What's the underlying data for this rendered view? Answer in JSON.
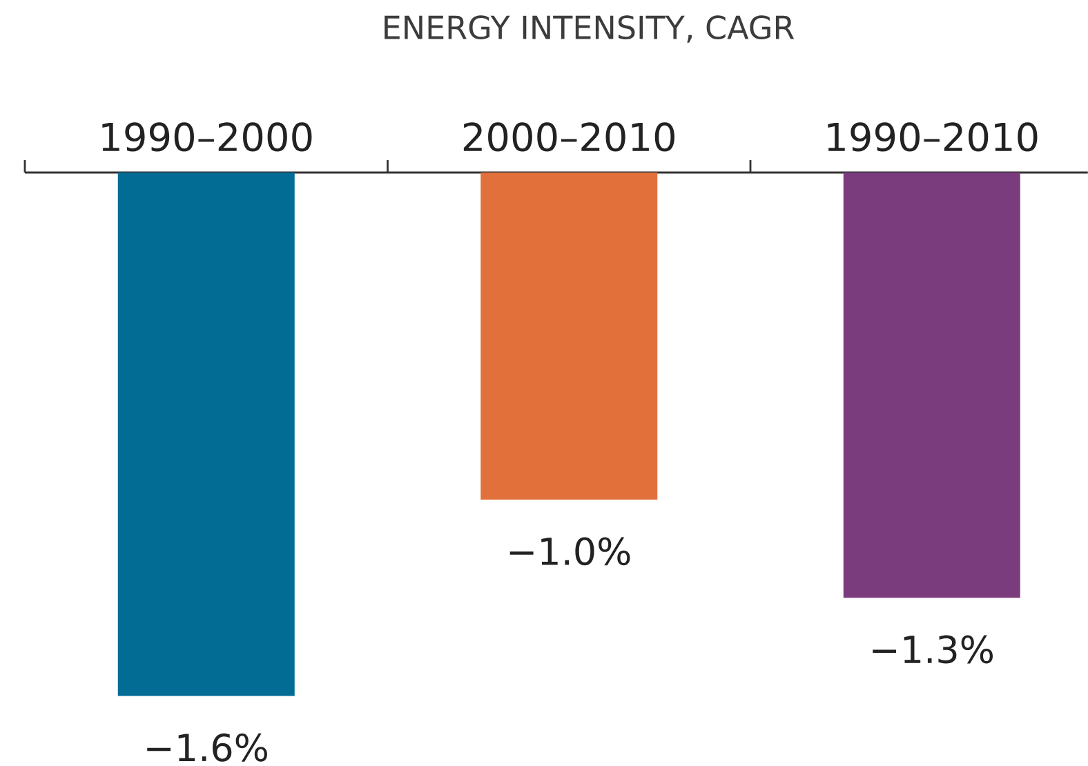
{
  "chart_data": {
    "type": "bar",
    "title": "ENERGY INTENSITY, CAGR",
    "categories": [
      "1990–2000",
      "2000–2010",
      "1990–2010"
    ],
    "values": [
      -1.6,
      -1.0,
      -1.3
    ],
    "colors": [
      "#026c95",
      "#e1703a",
      "#7b3c7e"
    ],
    "value_labels": [
      "−1.6%",
      "−1.0%",
      "−1.3%"
    ]
  }
}
